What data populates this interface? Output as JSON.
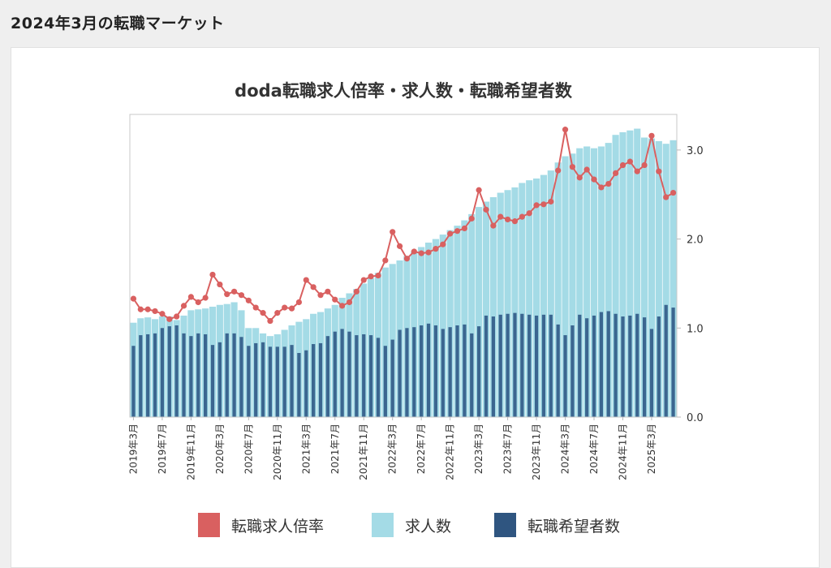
{
  "page": {
    "heading": "2024年3月の転職マーケット"
  },
  "colors": {
    "ratio": "#d96060",
    "openings": "#a4dbe6",
    "seekers": "#3b6690",
    "frame": "#c8c8c8"
  },
  "chart_data": {
    "type": "bar",
    "title": "doda転職求人倍率・求人数・転職希望者数",
    "secondary_type": "line",
    "ylim_right": [
      0,
      3.4
    ],
    "y_ticks_right": [
      "0.0",
      "1.0",
      "2.0",
      "3.0"
    ],
    "grid": false,
    "legend_position": "bottom",
    "x_tick_labels": [
      "2019年3月",
      "2019年7月",
      "2019年11月",
      "2020年3月",
      "2020年7月",
      "2020年11月",
      "2021年3月",
      "2021年7月",
      "2021年11月",
      "2022年3月",
      "2022年7月",
      "2022年11月",
      "2023年3月",
      "2023年7月",
      "2023年11月",
      "2024年3月",
      "2024年7月",
      "2024年11月",
      "2025年3月"
    ],
    "series": [
      {
        "name": "転職求人倍率",
        "kind": "line",
        "values": [
          1.33,
          1.21,
          1.21,
          1.19,
          1.16,
          1.1,
          1.13,
          1.25,
          1.35,
          1.29,
          1.34,
          1.6,
          1.49,
          1.38,
          1.41,
          1.37,
          1.31,
          1.23,
          1.17,
          1.08,
          1.17,
          1.23,
          1.22,
          1.29,
          1.54,
          1.46,
          1.37,
          1.41,
          1.32,
          1.25,
          1.29,
          1.41,
          1.54,
          1.58,
          1.59,
          1.76,
          2.08,
          1.92,
          1.78,
          1.86,
          1.84,
          1.85,
          1.89,
          1.94,
          2.06,
          2.09,
          2.12,
          2.23,
          2.55,
          2.33,
          2.15,
          2.25,
          2.22,
          2.2,
          2.25,
          2.29,
          2.38,
          2.39,
          2.42,
          2.77,
          3.23,
          2.81,
          2.69,
          2.78,
          2.67,
          2.58,
          2.62,
          2.74,
          2.83,
          2.87,
          2.76,
          2.83,
          3.16,
          2.76,
          2.47,
          2.52
        ]
      },
      {
        "name": "求人数",
        "kind": "bar",
        "values": [
          1.06,
          1.11,
          1.12,
          1.1,
          1.13,
          1.13,
          1.09,
          1.14,
          1.2,
          1.21,
          1.22,
          1.24,
          1.26,
          1.27,
          1.29,
          1.2,
          1.0,
          1.0,
          0.94,
          0.91,
          0.93,
          0.98,
          1.03,
          1.07,
          1.1,
          1.16,
          1.18,
          1.22,
          1.26,
          1.34,
          1.39,
          1.44,
          1.5,
          1.56,
          1.62,
          1.68,
          1.72,
          1.76,
          1.81,
          1.86,
          1.91,
          1.96,
          2.0,
          2.05,
          2.1,
          2.15,
          2.21,
          2.28,
          2.36,
          2.42,
          2.47,
          2.52,
          2.55,
          2.58,
          2.63,
          2.66,
          2.68,
          2.72,
          2.77,
          2.86,
          2.93,
          2.96,
          3.02,
          3.04,
          3.02,
          3.04,
          3.08,
          3.17,
          3.2,
          3.22,
          3.24,
          3.14,
          3.13,
          3.1,
          3.07,
          3.11
        ]
      },
      {
        "name": "転職希望者数",
        "kind": "bar",
        "values": [
          0.8,
          0.92,
          0.93,
          0.94,
          1.0,
          1.02,
          1.03,
          0.94,
          0.91,
          0.94,
          0.93,
          0.81,
          0.84,
          0.94,
          0.94,
          0.9,
          0.8,
          0.83,
          0.84,
          0.79,
          0.79,
          0.79,
          0.81,
          0.72,
          0.75,
          0.82,
          0.83,
          0.91,
          0.96,
          0.99,
          0.96,
          0.92,
          0.93,
          0.92,
          0.89,
          0.8,
          0.87,
          0.98,
          1.0,
          1.01,
          1.03,
          1.05,
          1.03,
          0.99,
          1.01,
          1.03,
          1.04,
          0.94,
          1.02,
          1.14,
          1.13,
          1.15,
          1.16,
          1.17,
          1.16,
          1.15,
          1.14,
          1.15,
          1.15,
          1.04,
          0.92,
          1.03,
          1.15,
          1.11,
          1.14,
          1.18,
          1.19,
          1.16,
          1.13,
          1.14,
          1.16,
          1.12,
          0.99,
          1.13,
          1.26,
          1.23
        ]
      }
    ]
  }
}
